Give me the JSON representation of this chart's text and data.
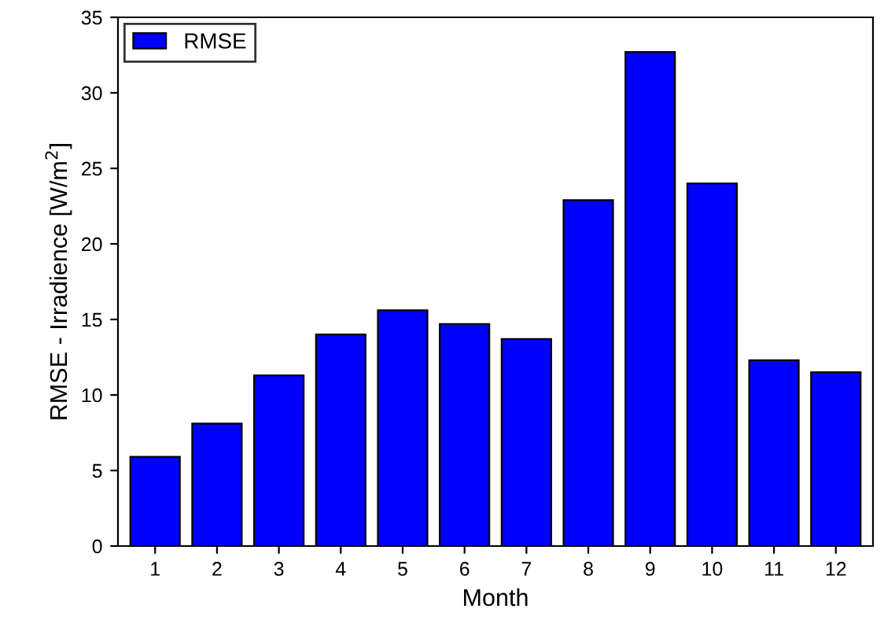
{
  "chart_data": {
    "type": "bar",
    "categories": [
      "1",
      "2",
      "3",
      "4",
      "5",
      "6",
      "7",
      "8",
      "9",
      "10",
      "11",
      "12"
    ],
    "series": [
      {
        "name": "RMSE",
        "color": "#0000ff",
        "values": [
          5.9,
          8.1,
          11.3,
          14.0,
          15.6,
          14.7,
          13.7,
          22.9,
          32.7,
          24.0,
          12.3,
          11.5
        ]
      }
    ],
    "xlabel": "Month",
    "ylabel": "RMSE - Irradience [W/m$^{2}$]",
    "ylim": [
      0,
      35
    ],
    "yticks": [
      0,
      5,
      10,
      15,
      20,
      25,
      30,
      35
    ],
    "grid": false,
    "legend": "top left"
  }
}
